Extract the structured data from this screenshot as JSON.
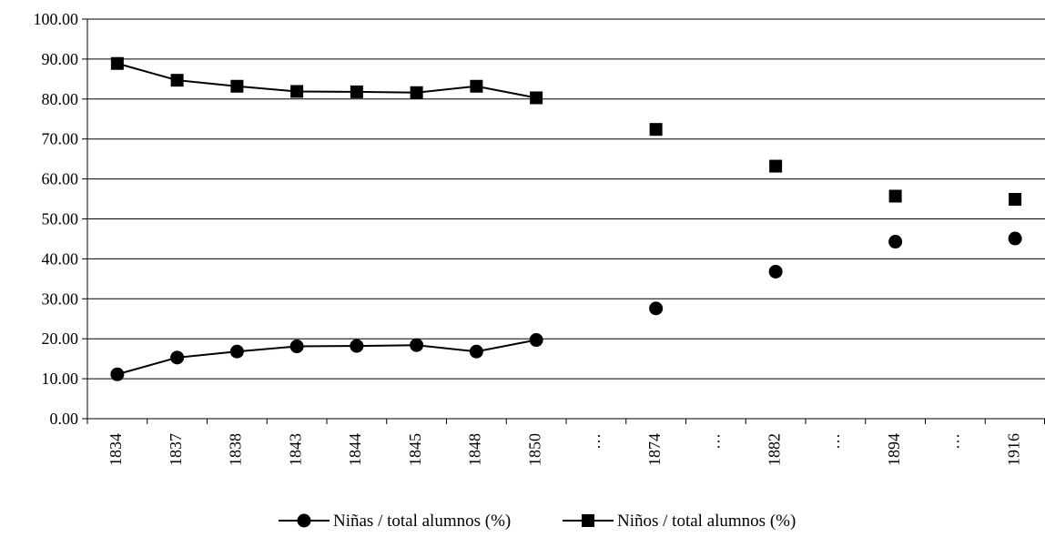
{
  "chart_data": {
    "type": "line",
    "title": "",
    "xlabel": "",
    "ylabel": "",
    "ylim": [
      0,
      100
    ],
    "y_ticks": [
      "0.00",
      "10.00",
      "20.00",
      "30.00",
      "40.00",
      "50.00",
      "60.00",
      "70.00",
      "80.00",
      "90.00",
      "100.00"
    ],
    "grid": "horizontal",
    "legend_position": "bottom",
    "categories": [
      "1834",
      "1837",
      "1838",
      "1843",
      "1844",
      "1845",
      "1848",
      "1850",
      "…",
      "1874",
      "…",
      "1882",
      "…",
      "1894",
      "…",
      "1916"
    ],
    "series": [
      {
        "name": "Niñas / total alumnos (%)",
        "marker": "circle",
        "values": [
          11.1,
          15.3,
          16.8,
          18.1,
          18.2,
          18.4,
          16.8,
          19.7,
          null,
          27.6,
          null,
          36.8,
          null,
          44.3,
          null,
          45.1
        ]
      },
      {
        "name": "Niños / total alumnos (%)",
        "marker": "square",
        "values": [
          88.9,
          84.7,
          83.2,
          81.9,
          81.8,
          81.6,
          83.2,
          80.3,
          null,
          72.4,
          null,
          63.2,
          null,
          55.7,
          null,
          54.9
        ]
      }
    ]
  }
}
